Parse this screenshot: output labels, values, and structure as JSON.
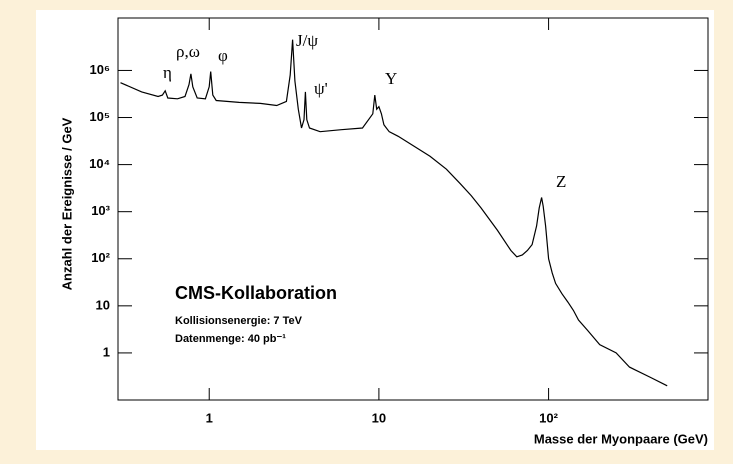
{
  "chart_data": {
    "type": "line",
    "xlabel": "Masse der Myonpaare (GeV)",
    "ylabel": "Anzahl der Ereignisse / GeV",
    "xlog": true,
    "ylog": true,
    "xlim": [
      0.29,
      870
    ],
    "ylim": [
      0.1,
      13000000
    ],
    "xticks": [
      1,
      10,
      {
        "value": 100,
        "label": "10²"
      }
    ],
    "yticks": [
      1,
      10,
      {
        "value": 100,
        "label": "10²"
      },
      {
        "value": 1000,
        "label": "10³"
      },
      {
        "value": 10000,
        "label": "10⁴"
      },
      {
        "value": 100000,
        "label": "10⁵"
      },
      {
        "value": 1000000,
        "label": "10⁶"
      }
    ],
    "annotations": [
      "η",
      "ρ,ω",
      "φ",
      "J/ψ",
      "ψ'",
      "Y",
      "Z"
    ],
    "text_block": [
      "CMS-Kollaboration",
      "Kollisionsenergie: 7 TeV",
      "Datenmenge: 40 pb⁻¹"
    ],
    "series": [
      {
        "color": "#000000",
        "x": [
          0.3,
          0.4,
          0.5,
          0.53,
          0.55,
          0.57,
          0.65,
          0.72,
          0.76,
          0.78,
          0.8,
          0.85,
          0.95,
          1.0,
          1.02,
          1.05,
          1.1,
          1.5,
          2.0,
          2.5,
          2.85,
          3.0,
          3.1,
          3.2,
          3.35,
          3.5,
          3.62,
          3.69,
          3.76,
          3.9,
          4.5,
          6,
          8,
          9.2,
          9.46,
          9.7,
          10.0,
          10.35,
          10.7,
          11.5,
          13,
          16,
          20,
          25,
          30,
          35,
          40,
          50,
          60,
          65,
          70,
          75,
          80,
          85,
          88,
          91,
          93,
          96,
          100,
          105,
          110,
          120,
          130,
          140,
          150,
          170,
          200,
          250,
          300,
          400,
          500
        ],
        "values": [
          550000,
          350000,
          280000,
          300000,
          370000,
          260000,
          250000,
          280000,
          500000,
          850000,
          450000,
          260000,
          250000,
          450000,
          950000,
          300000,
          230000,
          210000,
          200000,
          180000,
          220000,
          800000,
          4500000,
          600000,
          150000,
          60000,
          90000,
          350000,
          90000,
          60000,
          50000,
          55000,
          60000,
          120000,
          300000,
          150000,
          170000,
          120000,
          70000,
          50000,
          40000,
          25000,
          15000,
          8000,
          4000,
          2200,
          1200,
          400,
          150,
          110,
          120,
          150,
          200,
          500,
          1200,
          2000,
          1300,
          500,
          100,
          50,
          30,
          18,
          12,
          8,
          5,
          3,
          1.5,
          1,
          0.5,
          0.3,
          0.2
        ]
      }
    ]
  }
}
